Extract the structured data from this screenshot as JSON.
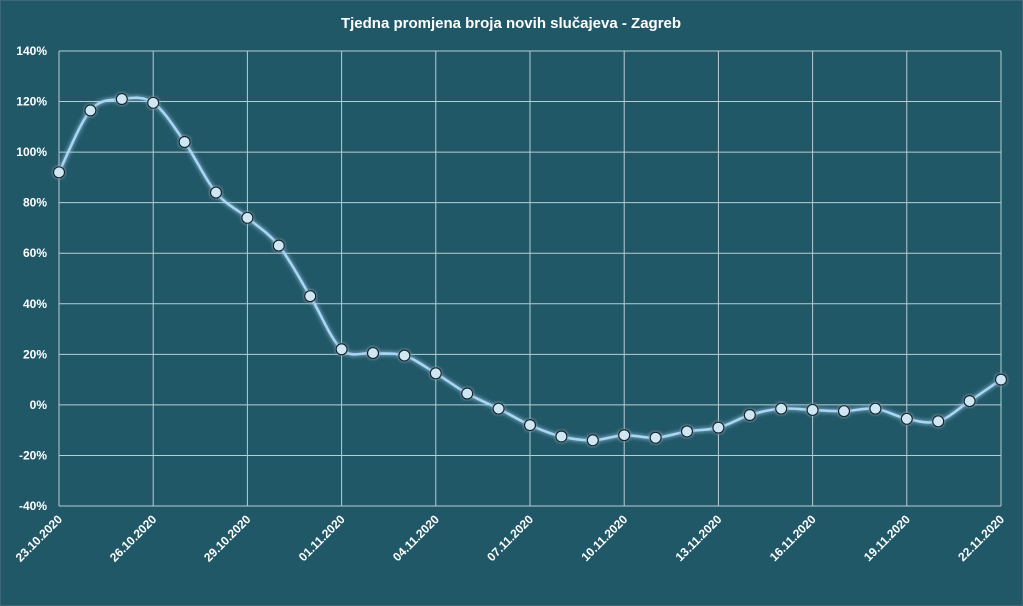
{
  "chart_data": {
    "type": "line",
    "title": "Tjedna promjena broja novih slučajeva - Zagreb",
    "xlabel": "",
    "ylabel": "",
    "ylim": [
      -40,
      140
    ],
    "yticks": [
      140,
      120,
      100,
      80,
      60,
      40,
      20,
      0,
      -20,
      -40
    ],
    "ytick_labels": [
      "140%",
      "120%",
      "100%",
      "80%",
      "60%",
      "40%",
      "20%",
      "0%",
      "-20%",
      "-40%"
    ],
    "xtick_labels": [
      "23.10.2020",
      "26.10.2020",
      "29.10.2020",
      "01.11.2020",
      "04.11.2020",
      "07.11.2020",
      "10.11.2020",
      "13.11.2020",
      "16.11.2020",
      "19.11.2020",
      "22.11.2020"
    ],
    "grid": true,
    "legend": "none",
    "series": [
      {
        "x": [
          "23.10.2020",
          "24.10.2020",
          "25.10.2020",
          "26.10.2020",
          "27.10.2020",
          "28.10.2020",
          "29.10.2020",
          "30.10.2020",
          "31.10.2020",
          "01.11.2020",
          "02.11.2020",
          "03.11.2020",
          "04.11.2020",
          "05.11.2020",
          "06.11.2020",
          "07.11.2020",
          "08.11.2020",
          "09.11.2020",
          "10.11.2020",
          "11.11.2020",
          "12.11.2020",
          "13.11.2020",
          "14.11.2020",
          "15.11.2020",
          "16.11.2020",
          "17.11.2020",
          "18.11.2020",
          "19.11.2020",
          "20.11.2020",
          "21.11.2020",
          "22.11.2020"
        ],
        "values": [
          92,
          116.5,
          121,
          119.5,
          104,
          84,
          74,
          63,
          43,
          22,
          20.5,
          19.5,
          12.5,
          4.5,
          -1.5,
          -8,
          -12.5,
          -14,
          -12,
          -13,
          -10.5,
          -9,
          -4,
          -1.5,
          -2,
          -2.5,
          -1.5,
          -5.5,
          -6.5,
          1.5,
          10
        ],
        "color": "#a9d6f5"
      }
    ]
  }
}
